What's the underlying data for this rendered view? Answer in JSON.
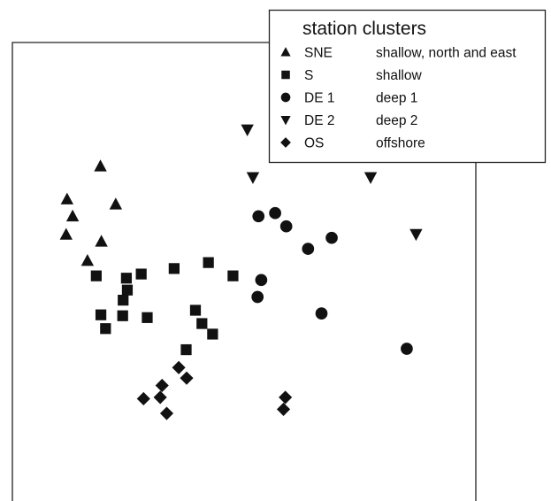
{
  "chart_data": {
    "type": "scatter",
    "title": "",
    "xlabel": "",
    "ylabel": "",
    "axes_ticks": "none",
    "xlim": [
      0,
      100
    ],
    "ylim": [
      0,
      100
    ],
    "legend": {
      "title": "station clusters",
      "placement": "top-right",
      "entries": [
        {
          "code": "SNE",
          "description": "shallow, north and east",
          "marker": "triangle-up"
        },
        {
          "code": "S",
          "description": "shallow",
          "marker": "square"
        },
        {
          "code": "DE 1",
          "description": "deep 1",
          "marker": "circle"
        },
        {
          "code": "DE 2",
          "description": "deep 2",
          "marker": "triangle-down"
        },
        {
          "code": "OS",
          "description": "offshore",
          "marker": "diamond"
        }
      ]
    },
    "series": [
      {
        "name": "SNE",
        "marker": "triangle-up",
        "points": [
          [
            19.0,
            73.0
          ],
          [
            22.3,
            64.7
          ],
          [
            11.8,
            65.8
          ],
          [
            13.0,
            62.1
          ],
          [
            11.6,
            58.1
          ],
          [
            19.2,
            56.6
          ],
          [
            16.2,
            52.4
          ]
        ]
      },
      {
        "name": "S",
        "marker": "square",
        "points": [
          [
            18.1,
            49.1
          ],
          [
            24.6,
            48.6
          ],
          [
            24.8,
            46.0
          ],
          [
            27.8,
            49.5
          ],
          [
            34.9,
            50.7
          ],
          [
            42.3,
            52.0
          ],
          [
            47.6,
            49.1
          ],
          [
            23.9,
            43.8
          ],
          [
            19.1,
            40.6
          ],
          [
            23.8,
            40.4
          ],
          [
            29.1,
            40.0
          ],
          [
            20.1,
            37.6
          ],
          [
            39.5,
            41.6
          ],
          [
            40.9,
            38.7
          ],
          [
            43.2,
            36.4
          ],
          [
            37.5,
            33.0
          ]
        ]
      },
      {
        "name": "DE 1",
        "marker": "circle",
        "points": [
          [
            56.7,
            62.8
          ],
          [
            53.1,
            62.1
          ],
          [
            59.1,
            59.9
          ],
          [
            68.9,
            57.4
          ],
          [
            63.8,
            55.0
          ],
          [
            53.7,
            48.2
          ],
          [
            52.9,
            44.5
          ],
          [
            66.7,
            40.9
          ],
          [
            85.1,
            33.2
          ]
        ]
      },
      {
        "name": "DE 2",
        "marker": "triangle-down",
        "points": [
          [
            50.7,
            81.0
          ],
          [
            51.9,
            70.6
          ],
          [
            77.3,
            70.6
          ],
          [
            87.1,
            58.2
          ]
        ]
      },
      {
        "name": "OS",
        "marker": "diamond",
        "points": [
          [
            35.9,
            29.1
          ],
          [
            37.6,
            26.8
          ],
          [
            32.3,
            25.2
          ],
          [
            28.3,
            22.3
          ],
          [
            31.9,
            22.6
          ],
          [
            33.3,
            19.1
          ],
          [
            58.9,
            22.6
          ],
          [
            58.5,
            20.0
          ]
        ]
      }
    ]
  }
}
